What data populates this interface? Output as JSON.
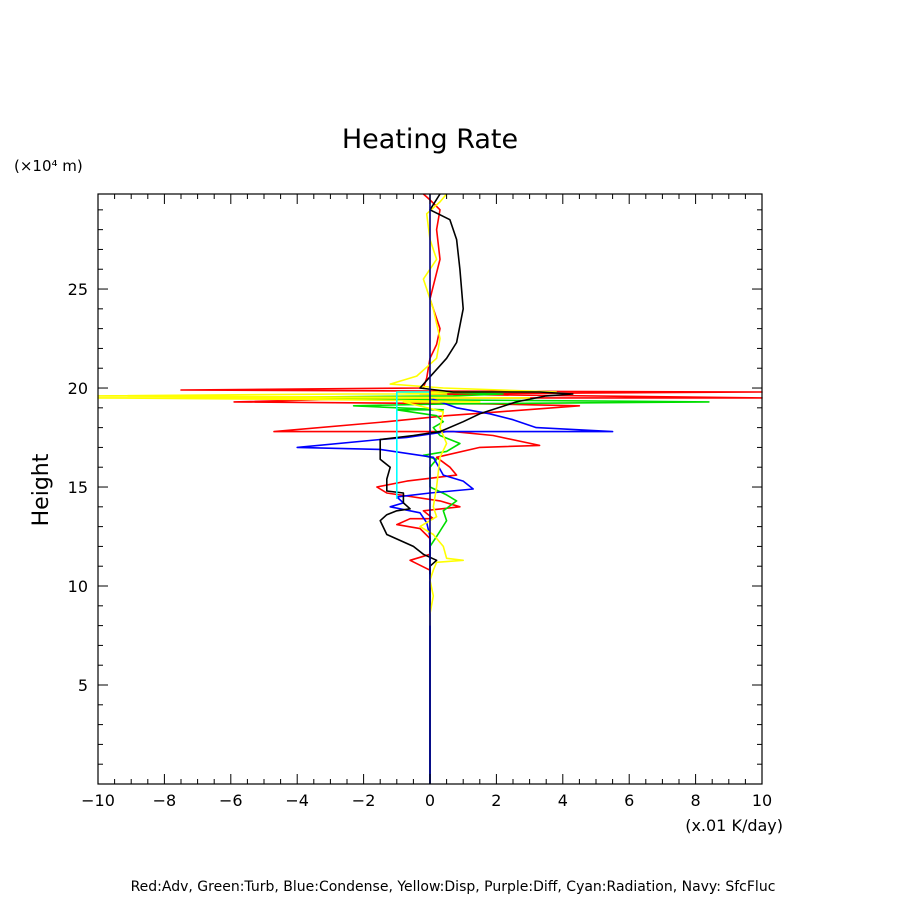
{
  "chart_data": {
    "type": "line",
    "title": "Heating Rate",
    "xlabel": "(x.01 K/day)",
    "ylabel": "Height",
    "y_unit": "(×10⁴ m)",
    "xlim": [
      -10,
      10
    ],
    "ylim": [
      0,
      29.8
    ],
    "x_ticks": [
      -10,
      -8,
      -6,
      -4,
      -2,
      0,
      2,
      4,
      6,
      8,
      10
    ],
    "y_ticks": [
      5,
      10,
      15,
      20,
      25
    ],
    "x_tick_labels": [
      "−10",
      "−8",
      "−6",
      "−4",
      "−2",
      "0",
      "2",
      "4",
      "6",
      "8",
      "10"
    ],
    "y_tick_labels": [
      "5",
      "10",
      "15",
      "20",
      "25"
    ],
    "grid": false,
    "legend_text": "Red:Adv, Green:Turb, Blue:Condense, Yellow:Disp, Purple:Diff, Cyan:Radiation, Navy: SfcFluc",
    "series": [
      {
        "color": "#ff0000",
        "points": [
          [
            0,
            0
          ],
          [
            0,
            10.8
          ],
          [
            -0.6,
            11.3
          ],
          [
            0,
            11.6
          ],
          [
            0,
            12.4
          ],
          [
            -0.3,
            12.9
          ],
          [
            -1.0,
            13.1
          ],
          [
            -0.6,
            13.4
          ],
          [
            0.1,
            13.4
          ],
          [
            -0.2,
            13.8
          ],
          [
            0.9,
            14.0
          ],
          [
            0.3,
            14.3
          ],
          [
            -1.3,
            14.7
          ],
          [
            -1.6,
            15.0
          ],
          [
            -0.7,
            15.3
          ],
          [
            0.8,
            15.6
          ],
          [
            0.6,
            16.0
          ],
          [
            0.2,
            16.5
          ],
          [
            1.5,
            17.0
          ],
          [
            3.3,
            17.1
          ],
          [
            1.9,
            17.6
          ],
          [
            0.7,
            17.8
          ],
          [
            -4.7,
            17.8
          ],
          [
            -1.3,
            18.3
          ],
          [
            0.5,
            18.6
          ],
          [
            2.1,
            18.8
          ],
          [
            4.5,
            19.1
          ],
          [
            1.8,
            19.2
          ],
          [
            -5.9,
            19.3
          ],
          [
            -1.2,
            19.5
          ],
          [
            10.0,
            19.5
          ],
          [
            -0.3,
            19.7
          ],
          [
            10.0,
            19.8
          ],
          [
            -0.2,
            19.85
          ],
          [
            -7.5,
            19.9
          ],
          [
            -0.2,
            20.0
          ],
          [
            -0.1,
            20.5
          ],
          [
            0,
            21.5
          ],
          [
            0.2,
            22.2
          ],
          [
            0.3,
            23.0
          ],
          [
            0,
            24.5
          ],
          [
            0.3,
            26.5
          ],
          [
            0.2,
            28.0
          ],
          [
            0.3,
            29.0
          ],
          [
            0,
            29.5
          ],
          [
            -0.2,
            29.8
          ]
        ]
      },
      {
        "color": "#00dd00",
        "points": [
          [
            0,
            0
          ],
          [
            0,
            12.0
          ],
          [
            0.2,
            12.5
          ],
          [
            0.5,
            13.3
          ],
          [
            0.4,
            13.8
          ],
          [
            0.8,
            14.3
          ],
          [
            0.5,
            14.6
          ],
          [
            0,
            15.0
          ],
          [
            0,
            16.0
          ],
          [
            0.2,
            16.4
          ],
          [
            -0.2,
            16.6
          ],
          [
            0.5,
            16.8
          ],
          [
            0.9,
            17.2
          ],
          [
            0.3,
            17.6
          ],
          [
            0.1,
            18.0
          ],
          [
            0.4,
            18.3
          ],
          [
            0.2,
            18.6
          ],
          [
            -1.0,
            18.9
          ],
          [
            0.4,
            18.9
          ],
          [
            -2.3,
            19.1
          ],
          [
            0.5,
            19.2
          ],
          [
            8.4,
            19.3
          ],
          [
            0.5,
            19.4
          ],
          [
            -7.0,
            19.5
          ],
          [
            0.7,
            19.6
          ],
          [
            2.2,
            19.7
          ],
          [
            0.1,
            19.8
          ]
        ]
      },
      {
        "color": "#0000ff",
        "points": [
          [
            0,
            0
          ],
          [
            0,
            12.5
          ],
          [
            -0.1,
            13.2
          ],
          [
            -0.3,
            13.7
          ],
          [
            -1.2,
            14.0
          ],
          [
            -0.8,
            14.2
          ],
          [
            -1.0,
            14.5
          ],
          [
            0,
            14.7
          ],
          [
            1.3,
            14.9
          ],
          [
            1.0,
            15.3
          ],
          [
            0.4,
            15.6
          ],
          [
            0.1,
            16.5
          ],
          [
            -1.5,
            16.9
          ],
          [
            -4.0,
            17.0
          ],
          [
            -1.5,
            17.4
          ],
          [
            -0.7,
            17.5
          ],
          [
            0.5,
            17.8
          ],
          [
            5.5,
            17.8
          ],
          [
            3.2,
            18.0
          ],
          [
            2.5,
            18.4
          ],
          [
            1.8,
            18.7
          ],
          [
            0.8,
            19.0
          ],
          [
            0.3,
            19.3
          ],
          [
            0,
            19.5
          ]
        ]
      },
      {
        "color": "#ffff00",
        "points": [
          [
            0,
            8.0
          ],
          [
            0,
            8.6
          ],
          [
            0.1,
            9.5
          ],
          [
            0,
            10.3
          ],
          [
            0.1,
            10.8
          ],
          [
            0.2,
            11.2
          ],
          [
            1.0,
            11.3
          ],
          [
            0.5,
            11.4
          ],
          [
            0.4,
            12.0
          ],
          [
            0.1,
            12.6
          ],
          [
            -0.3,
            13.0
          ],
          [
            0.2,
            13.5
          ],
          [
            0.1,
            14.0
          ],
          [
            0.2,
            15.0
          ],
          [
            0.3,
            16.5
          ],
          [
            0.5,
            17.2
          ],
          [
            0.3,
            18.0
          ],
          [
            0.4,
            18.8
          ],
          [
            -0.8,
            19.3
          ],
          [
            1.5,
            19.3
          ],
          [
            -2.0,
            19.4
          ],
          [
            -10.0,
            19.5
          ],
          [
            3.0,
            19.5
          ],
          [
            -10.0,
            19.6
          ],
          [
            -2.5,
            19.7
          ],
          [
            0.5,
            19.7
          ],
          [
            -1.0,
            19.8
          ],
          [
            3.8,
            19.8
          ],
          [
            0.4,
            20.0
          ],
          [
            -1.2,
            20.2
          ],
          [
            -0.4,
            20.6
          ],
          [
            0.2,
            21.5
          ],
          [
            0.3,
            22.5
          ],
          [
            0.1,
            24.0
          ],
          [
            -0.2,
            25.5
          ],
          [
            0.2,
            26.5
          ],
          [
            0,
            27.5
          ],
          [
            -0.1,
            28.8
          ],
          [
            0.3,
            29.4
          ],
          [
            0.5,
            29.8
          ]
        ]
      },
      {
        "color": "#000000",
        "points": [
          [
            0,
            10.6
          ],
          [
            0,
            11.0
          ],
          [
            0.2,
            11.3
          ],
          [
            -0.2,
            11.6
          ],
          [
            -0.5,
            12.0
          ],
          [
            -1.3,
            12.6
          ],
          [
            -1.5,
            13.3
          ],
          [
            -1.3,
            13.6
          ],
          [
            -1.0,
            13.8
          ],
          [
            -0.6,
            13.9
          ],
          [
            -0.8,
            14.2
          ],
          [
            -0.8,
            14.7
          ],
          [
            -1.3,
            14.8
          ],
          [
            -1.3,
            15.4
          ],
          [
            -1.2,
            16.0
          ],
          [
            -1.5,
            16.4
          ],
          [
            -1.5,
            17.4
          ],
          [
            -0.5,
            17.6
          ],
          [
            0.3,
            17.8
          ],
          [
            1.0,
            18.3
          ],
          [
            1.5,
            18.7
          ],
          [
            2.6,
            19.3
          ],
          [
            3.5,
            19.6
          ],
          [
            4.3,
            19.7
          ],
          [
            3.3,
            19.8
          ],
          [
            0.7,
            19.8
          ],
          [
            -0.3,
            20.0
          ],
          [
            0.5,
            21.5
          ],
          [
            0.8,
            22.3
          ],
          [
            1.0,
            24.0
          ],
          [
            0.9,
            26.0
          ],
          [
            0.8,
            27.5
          ],
          [
            0.6,
            28.5
          ],
          [
            0,
            29.0
          ],
          [
            0.3,
            29.8
          ]
        ]
      },
      {
        "color": "#00ffff",
        "points": [
          [
            -1.0,
            14.4
          ],
          [
            -1.0,
            19.8
          ],
          [
            0,
            19.8
          ]
        ]
      },
      {
        "color": "#000080",
        "points": [
          [
            0,
            0
          ],
          [
            0,
            29.8
          ]
        ]
      }
    ]
  }
}
